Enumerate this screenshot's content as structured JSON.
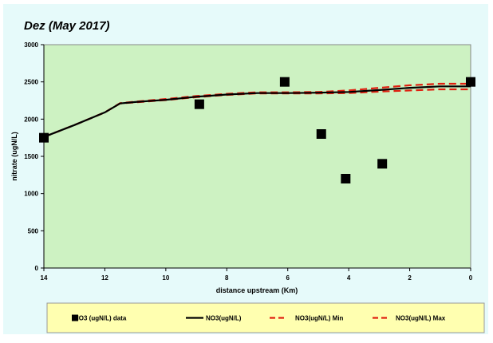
{
  "chart_data": {
    "type": "line",
    "title": "Dez (May 2017)",
    "xlabel": "distance upstream (Km)",
    "ylabel": "nitrate (ugN/L)",
    "xlim": [
      14,
      0
    ],
    "ylim": [
      0,
      3000
    ],
    "xticks": [
      14,
      12,
      10,
      8,
      6,
      4,
      2,
      0
    ],
    "yticks": [
      0,
      500,
      1000,
      1500,
      2000,
      2500,
      3000
    ],
    "grid": false,
    "legend": "bottom",
    "colors": {
      "outer_background": "#e6fafa",
      "plot_background": "#cdf2c2",
      "legend_background": "#ffffb0",
      "data_marker": "#000000",
      "model_line": "#000000",
      "min_max_lines": "#e02010"
    },
    "series": [
      {
        "name": "NO3 (ugN/L) data",
        "style": "square-marker",
        "x": [
          14.0,
          8.9,
          6.1,
          4.9,
          4.1,
          2.9,
          0.0
        ],
        "y": [
          1750,
          2200,
          2500,
          1800,
          1200,
          1400,
          2500
        ]
      },
      {
        "name": "NO3(ugN/L)",
        "style": "solid-line",
        "x": [
          14.0,
          13.0,
          12.0,
          11.5,
          11.0,
          10.0,
          9.0,
          8.0,
          7.0,
          6.0,
          5.0,
          4.0,
          3.0,
          2.0,
          1.0,
          0.0
        ],
        "y": [
          1760,
          1920,
          2090,
          2210,
          2230,
          2260,
          2300,
          2330,
          2350,
          2350,
          2355,
          2365,
          2390,
          2420,
          2440,
          2440
        ]
      },
      {
        "name": "NO3(ugN/L) Min",
        "style": "dashed-line",
        "x": [
          14.0,
          13.0,
          12.0,
          11.5,
          11.0,
          10.0,
          9.0,
          8.0,
          7.0,
          6.0,
          5.0,
          4.0,
          3.0,
          2.0,
          1.0,
          0.0
        ],
        "y": [
          1760,
          1920,
          2090,
          2210,
          2225,
          2255,
          2295,
          2325,
          2345,
          2345,
          2345,
          2350,
          2370,
          2385,
          2400,
          2400
        ]
      },
      {
        "name": "NO3(ugN/L) Max",
        "style": "dashed-line",
        "x": [
          14.0,
          13.0,
          12.0,
          11.5,
          11.0,
          10.0,
          9.0,
          8.0,
          7.0,
          6.0,
          5.0,
          4.0,
          3.0,
          2.0,
          1.0,
          0.0
        ],
        "y": [
          1760,
          1920,
          2090,
          2215,
          2235,
          2270,
          2310,
          2340,
          2360,
          2360,
          2365,
          2385,
          2420,
          2455,
          2475,
          2475
        ]
      }
    ]
  }
}
